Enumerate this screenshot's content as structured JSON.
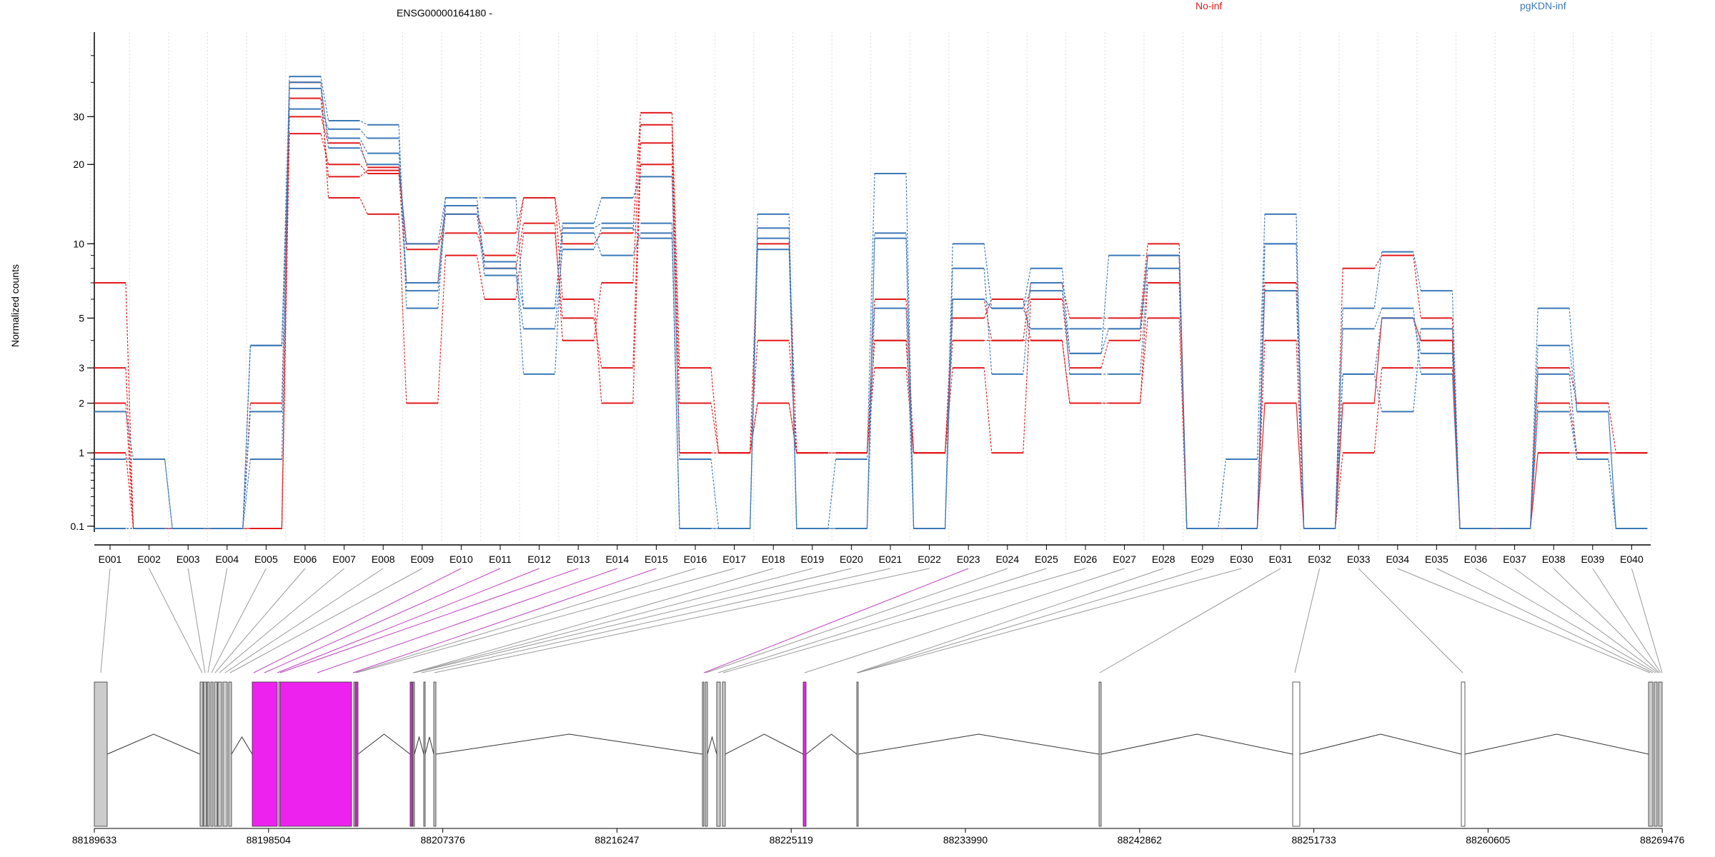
{
  "chart_data": {
    "type": "line",
    "title": "ENSG00000164180 -",
    "ylabel": "Normalized counts",
    "y_scale": "log(1+y)",
    "ylim": [
      0.08,
      53
    ],
    "y_ticks": [
      0.1,
      1,
      2,
      3,
      5,
      10,
      20,
      30
    ],
    "categories": [
      "E001",
      "E002",
      "E003",
      "E004",
      "E005",
      "E006",
      "E007",
      "E008",
      "E009",
      "E010",
      "E011",
      "E012",
      "E013",
      "E014",
      "E015",
      "E016",
      "E017",
      "E018",
      "E019",
      "E020",
      "E021",
      "E022",
      "E023",
      "E024",
      "E025",
      "E026",
      "E027",
      "E028",
      "E029",
      "E030",
      "E031",
      "E032",
      "E033",
      "E034",
      "E035",
      "E036",
      "E037",
      "E038",
      "E039",
      "E040"
    ],
    "legend": [
      {
        "label": "No-inf",
        "color": "#e31a1c"
      },
      {
        "label": "pgKDN-inf",
        "color": "#3b78b8"
      }
    ],
    "series": [
      {
        "group": "No-inf",
        "color": "#e31a1c",
        "values": [
          7.0,
          0.08,
          0.08,
          0.08,
          0.08,
          30.0,
          24.0,
          19.5,
          9.5,
          13.0,
          11.0,
          15.0,
          10.0,
          11.0,
          31.0,
          3.0,
          1.0,
          2.0,
          1.0,
          1.0,
          3.0,
          1.0,
          4.0,
          4.0,
          7.0,
          5.0,
          5.0,
          10.0,
          0.08,
          0.08,
          7.0,
          0.08,
          8.0,
          9.0,
          5.0,
          0.08,
          0.08,
          3.0,
          2.0,
          1.0
        ]
      },
      {
        "group": "No-inf",
        "color": "#e31a1c",
        "values": [
          3.0,
          0.08,
          0.08,
          0.08,
          0.08,
          26.0,
          20.0,
          18.5,
          7.0,
          14.0,
          8.0,
          12.0,
          4.0,
          7.0,
          28.0,
          2.0,
          1.0,
          4.0,
          1.0,
          1.0,
          6.0,
          1.0,
          3.0,
          1.0,
          6.0,
          3.0,
          4.0,
          9.0,
          0.08,
          0.08,
          4.0,
          0.08,
          2.0,
          5.0,
          4.0,
          0.08,
          0.08,
          2.0,
          1.0,
          1.0
        ]
      },
      {
        "group": "No-inf",
        "color": "#e31a1c",
        "values": [
          1.0,
          0.08,
          0.08,
          0.08,
          0.08,
          40.0,
          15.0,
          13.0,
          2.0,
          9.0,
          6.0,
          11.0,
          5.0,
          3.0,
          24.0,
          1.0,
          1.0,
          10.0,
          1.0,
          1.0,
          4.0,
          1.0,
          5.0,
          6.0,
          4.0,
          2.0,
          2.0,
          5.0,
          0.08,
          0.08,
          2.0,
          0.08,
          1.0,
          3.0,
          3.0,
          0.08,
          0.08,
          1.0,
          1.0,
          1.0
        ]
      },
      {
        "group": "No-inf",
        "color": "#e31a1c",
        "values": [
          2.0,
          0.08,
          0.08,
          0.08,
          2.0,
          35.0,
          18.0,
          19.0,
          10.0,
          11.0,
          9.0,
          15.0,
          6.0,
          2.0,
          20.0,
          1.0,
          1.0,
          2.0,
          1.0,
          1.0,
          4.0,
          1.0,
          6.0,
          4.0,
          4.0,
          2.0,
          2.0,
          7.0,
          0.08,
          0.08,
          2.0,
          0.08,
          2.0,
          5.0,
          4.0,
          0.08,
          0.08,
          1.0,
          1.0,
          1.0
        ]
      },
      {
        "group": "pgKDN-inf",
        "color": "#3b78b8",
        "values": [
          1.8,
          0.9,
          0.08,
          0.08,
          3.8,
          32.0,
          27.0,
          25.0,
          7.0,
          15.0,
          15.0,
          5.5,
          12.0,
          15.0,
          18.0,
          0.9,
          0.08,
          13.0,
          0.08,
          0.9,
          18.5,
          0.08,
          10.0,
          5.5,
          8.0,
          3.5,
          9.0,
          9.0,
          0.08,
          0.9,
          13.0,
          0.08,
          5.5,
          9.3,
          6.5,
          0.08,
          0.08,
          5.5,
          1.8,
          0.08
        ]
      },
      {
        "group": "pgKDN-inf",
        "color": "#3b78b8",
        "values": [
          0.9,
          0.9,
          0.08,
          0.08,
          0.9,
          42.0,
          29.0,
          28.0,
          5.5,
          14.0,
          8.5,
          2.8,
          11.0,
          9.0,
          11.0,
          0.08,
          0.08,
          9.5,
          0.08,
          0.08,
          11.0,
          0.08,
          8.0,
          2.8,
          7.0,
          2.8,
          2.8,
          8.0,
          0.08,
          0.08,
          10.0,
          0.08,
          2.8,
          1.8,
          4.5,
          0.08,
          0.08,
          2.8,
          0.9,
          0.08
        ]
      },
      {
        "group": "pgKDN-inf",
        "color": "#3b78b8",
        "values": [
          0.08,
          0.08,
          0.08,
          0.08,
          1.8,
          38.0,
          25.0,
          22.0,
          6.5,
          13.0,
          7.5,
          4.5,
          9.5,
          11.5,
          10.5,
          0.08,
          0.08,
          10.5,
          0.08,
          0.08,
          5.5,
          0.08,
          6.0,
          5.5,
          4.5,
          4.5,
          4.5,
          9.0,
          0.08,
          0.08,
          6.5,
          0.08,
          4.5,
          5.5,
          2.8,
          0.08,
          0.08,
          1.8,
          0.9,
          0.08
        ]
      },
      {
        "group": "pgKDN-inf",
        "color": "#3b78b8",
        "values": [
          0.08,
          0.08,
          0.08,
          0.08,
          3.8,
          40.0,
          23.0,
          20.0,
          10.0,
          15.0,
          8.0,
          5.5,
          11.5,
          12.0,
          12.0,
          0.08,
          0.08,
          11.5,
          0.08,
          0.08,
          10.5,
          0.08,
          6.0,
          5.5,
          6.5,
          3.5,
          4.5,
          9.0,
          0.08,
          0.08,
          10.0,
          0.08,
          2.8,
          5.0,
          3.5,
          0.08,
          0.08,
          3.8,
          1.8,
          0.08
        ]
      }
    ]
  },
  "gene_model": {
    "coordinates": [
      "88189633",
      "88198504",
      "88207376",
      "88216247",
      "88225119",
      "88233990",
      "88242862",
      "88251733",
      "88260605",
      "88269476"
    ],
    "highlight_color": "#ee22ee",
    "exon_color": "#cccccc"
  }
}
